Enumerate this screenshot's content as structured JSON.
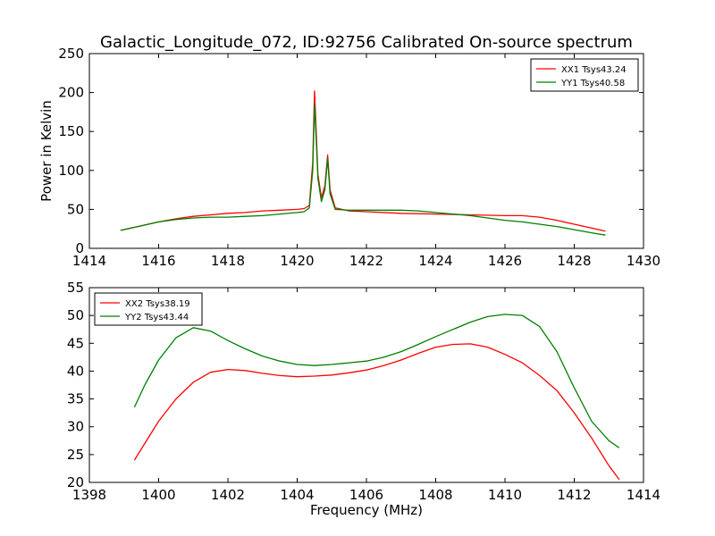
{
  "title": "Galactic_Longitude_072, ID:92756 Calibrated On-source spectrum",
  "chart_data": [
    {
      "type": "line",
      "ylabel": "Power in Kelvin",
      "xlabel": "",
      "xlim": [
        1414,
        1430
      ],
      "ylim": [
        0,
        250
      ],
      "xticks": [
        "1414",
        "1416",
        "1418",
        "1420",
        "1422",
        "1424",
        "1426",
        "1428",
        "1430"
      ],
      "yticks": [
        "0",
        "50",
        "100",
        "150",
        "200",
        "250"
      ],
      "legend_position": "top-right",
      "grid": false,
      "series": [
        {
          "name": "XX1 Tsys43.24",
          "color": "#ff0000",
          "x": [
            1414.9,
            1415.5,
            1416.0,
            1416.5,
            1417.0,
            1417.5,
            1418.0,
            1418.5,
            1419.0,
            1419.5,
            1420.0,
            1420.2,
            1420.35,
            1420.45,
            1420.5,
            1420.55,
            1420.6,
            1420.7,
            1420.8,
            1420.88,
            1420.95,
            1421.1,
            1421.5,
            1422.0,
            1423.0,
            1424.0,
            1425.0,
            1426.0,
            1426.5,
            1427.0,
            1427.5,
            1428.0,
            1428.5,
            1428.9
          ],
          "y": [
            23,
            29,
            34,
            38,
            41,
            43,
            45,
            46,
            48,
            49,
            50,
            51,
            55,
            110,
            202,
            150,
            95,
            65,
            80,
            120,
            75,
            52,
            48,
            47,
            45,
            44,
            43,
            42,
            42,
            40,
            36,
            31,
            26,
            22
          ]
        },
        {
          "name": "YY1 Tsys40.58",
          "color": "#008000",
          "x": [
            1414.9,
            1415.5,
            1416.0,
            1416.5,
            1417.0,
            1417.5,
            1418.0,
            1418.5,
            1419.0,
            1419.5,
            1420.0,
            1420.2,
            1420.35,
            1420.45,
            1420.5,
            1420.55,
            1420.6,
            1420.7,
            1420.8,
            1420.88,
            1420.95,
            1421.1,
            1421.5,
            1422.0,
            1422.5,
            1423.0,
            1423.5,
            1424.0,
            1424.5,
            1425.0,
            1425.5,
            1426.0,
            1426.5,
            1427.0,
            1427.5,
            1428.0,
            1428.5,
            1428.9
          ],
          "y": [
            23,
            29,
            34,
            37,
            39,
            40,
            40,
            41,
            42,
            44,
            46,
            47,
            52,
            100,
            185,
            140,
            90,
            60,
            75,
            115,
            70,
            50,
            49,
            49,
            49,
            49,
            48,
            46,
            44,
            42,
            39,
            36,
            34,
            31,
            28,
            24,
            20,
            17
          ]
        }
      ]
    },
    {
      "type": "line",
      "ylabel": "",
      "xlabel": "Frequency (MHz)",
      "xlim": [
        1398,
        1414
      ],
      "ylim": [
        20,
        55
      ],
      "xticks": [
        "1398",
        "1400",
        "1402",
        "1404",
        "1406",
        "1408",
        "1410",
        "1412",
        "1414"
      ],
      "yticks": [
        "20",
        "25",
        "30",
        "35",
        "40",
        "45",
        "50",
        "55"
      ],
      "legend_position": "top-left",
      "grid": false,
      "series": [
        {
          "name": "XX2 Tsys38.19",
          "color": "#ff0000",
          "x": [
            1399.3,
            1399.6,
            1400.0,
            1400.5,
            1401.0,
            1401.5,
            1402.0,
            1402.5,
            1403.0,
            1403.5,
            1404.0,
            1404.5,
            1405.0,
            1405.5,
            1406.0,
            1406.5,
            1407.0,
            1407.5,
            1408.0,
            1408.5,
            1409.0,
            1409.5,
            1410.0,
            1410.5,
            1411.0,
            1411.5,
            1412.0,
            1412.5,
            1413.0,
            1413.3
          ],
          "y": [
            24,
            27,
            31,
            35,
            38,
            39.8,
            40.3,
            40.1,
            39.6,
            39.2,
            39.0,
            39.1,
            39.3,
            39.7,
            40.2,
            41.0,
            42.0,
            43.2,
            44.3,
            44.8,
            44.9,
            44.3,
            43.0,
            41.5,
            39.2,
            36.5,
            32.5,
            28,
            23,
            20.5
          ]
        },
        {
          "name": "YY2 Tsys43.44",
          "color": "#008000",
          "x": [
            1399.3,
            1399.6,
            1400.0,
            1400.5,
            1401.0,
            1401.5,
            1402.0,
            1402.5,
            1403.0,
            1403.5,
            1404.0,
            1404.5,
            1405.0,
            1405.5,
            1406.0,
            1406.5,
            1407.0,
            1407.5,
            1408.0,
            1408.5,
            1409.0,
            1409.5,
            1410.0,
            1410.5,
            1411.0,
            1411.5,
            1412.0,
            1412.5,
            1413.0,
            1413.3
          ],
          "y": [
            33.5,
            37.5,
            42,
            46,
            47.8,
            47.2,
            45.5,
            44,
            42.7,
            41.8,
            41.2,
            41.0,
            41.2,
            41.5,
            41.8,
            42.5,
            43.5,
            44.8,
            46.2,
            47.5,
            48.8,
            49.8,
            50.2,
            50.0,
            48,
            43.5,
            37,
            31,
            27.5,
            26.2
          ]
        }
      ]
    }
  ]
}
